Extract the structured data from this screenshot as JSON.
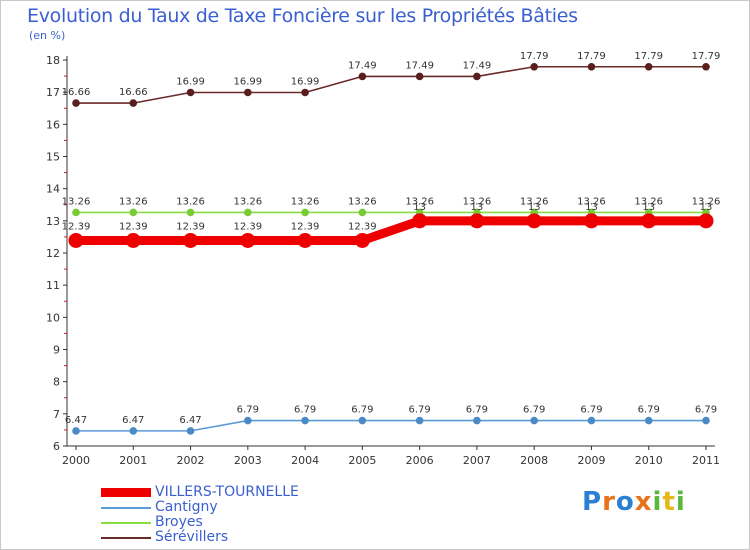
{
  "header": {
    "title": "Evolution du Taux de Taxe Foncière sur les Propriétés Bâties",
    "unit": "(en %)"
  },
  "chart_data": {
    "type": "line",
    "title": "Evolution du Taux de Taxe Foncière sur les Propriétés Bâties",
    "ylabel": "(en %)",
    "xlabel": "",
    "categories": [
      "2000",
      "2001",
      "2002",
      "2003",
      "2004",
      "2005",
      "2006",
      "2007",
      "2008",
      "2009",
      "2010",
      "2011"
    ],
    "ylim": [
      6,
      18
    ],
    "yticks": [
      6,
      7,
      8,
      9,
      10,
      11,
      12,
      13,
      14,
      15,
      16,
      17,
      18
    ],
    "grid": false,
    "legend_position": "bottom-left",
    "series": [
      {
        "name": "Sérévillers",
        "color": "#6b2a2a",
        "marker": "#5a1e1e",
        "values": [
          16.66,
          16.66,
          16.99,
          16.99,
          16.99,
          17.49,
          17.49,
          17.49,
          17.79,
          17.79,
          17.79,
          17.79
        ],
        "labels": [
          "16.66",
          "16.66",
          "16.99",
          "16.99",
          "16.99",
          "17.49",
          "17.49",
          "17.49",
          "17.79",
          "17.79",
          "17.79",
          "17.79"
        ]
      },
      {
        "name": "Broyes",
        "color": "#88dd44",
        "marker": "#77cc33",
        "values": [
          13.26,
          13.26,
          13.26,
          13.26,
          13.26,
          13.26,
          13.26,
          13.26,
          13.26,
          13.26,
          13.26,
          13.26
        ],
        "labels": [
          "13.26",
          "13.26",
          "13.26",
          "13.26",
          "13.26",
          "13.26",
          "13.26",
          "13.26",
          "13.26",
          "13.26",
          "13.26",
          "13.26"
        ]
      },
      {
        "name": "VILLERS-TOURNELLE",
        "color": "#ee0000",
        "marker": "#ee0000",
        "values": [
          12.39,
          12.39,
          12.39,
          12.39,
          12.39,
          12.39,
          13,
          13,
          13,
          13,
          13,
          13
        ],
        "labels": [
          "12.39",
          "12.39",
          "12.39",
          "12.39",
          "12.39",
          "12.39",
          "13",
          "13",
          "13",
          "13",
          "13",
          "13"
        ]
      },
      {
        "name": "Cantigny",
        "color": "#5a9ad6",
        "marker": "#4a8ac6",
        "values": [
          6.47,
          6.47,
          6.47,
          6.79,
          6.79,
          6.79,
          6.79,
          6.79,
          6.79,
          6.79,
          6.79,
          6.79
        ],
        "labels": [
          "6.47",
          "6.47",
          "6.47",
          "6.79",
          "6.79",
          "6.79",
          "6.79",
          "6.79",
          "6.79",
          "6.79",
          "6.79",
          "6.79"
        ]
      }
    ]
  },
  "legend": {
    "items": [
      {
        "label": "VILLERS-TOURNELLE",
        "color": "#ee0000",
        "thick": true
      },
      {
        "label": "Cantigny",
        "color": "#5a9ad6",
        "thick": false
      },
      {
        "label": "Broyes",
        "color": "#88dd44",
        "thick": false
      },
      {
        "label": "Sérévillers",
        "color": "#6b2a2a",
        "thick": false
      }
    ]
  },
  "logo": {
    "letters": [
      "P",
      "r",
      "o",
      "x",
      "i",
      "t",
      "i"
    ],
    "colors": [
      "#2a7fd4",
      "#e8731a",
      "#2a7fd4",
      "#e8731a",
      "#5ab83a",
      "#e8b81a",
      "#5ab83a"
    ],
    "text": "Proxiti"
  }
}
